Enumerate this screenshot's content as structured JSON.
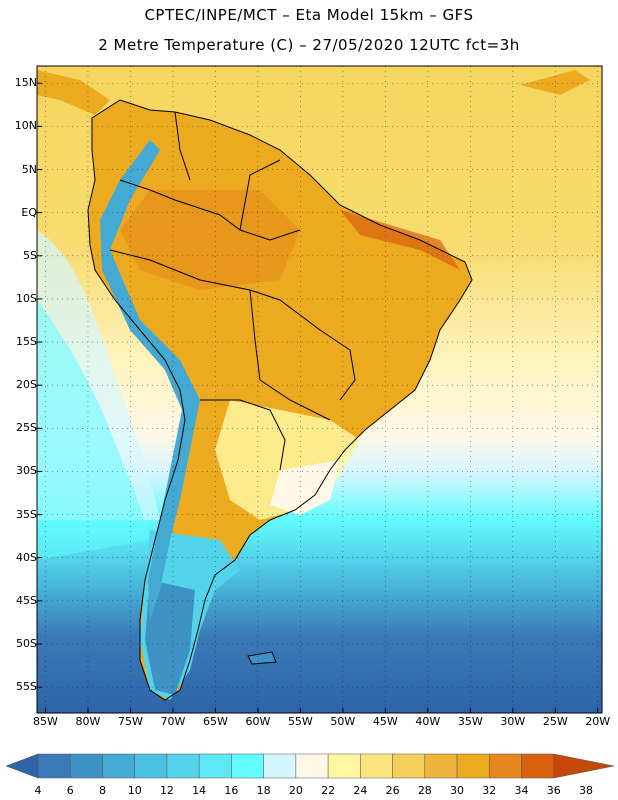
{
  "title": {
    "line1": "CPTEC/INPE/MCT –  Eta Model 15km – GFS",
    "line2": "2 Metre Temperature (C) – 27/05/2020 12UTC fct=3h"
  },
  "axes": {
    "lat_labels": [
      "15N",
      "10N",
      "5N",
      "EQ",
      "5S",
      "10S",
      "15S",
      "20S",
      "25S",
      "30S",
      "35S",
      "40S",
      "45S",
      "50S",
      "55S"
    ],
    "lat_values": [
      15,
      10,
      5,
      0,
      -5,
      -10,
      -15,
      -20,
      -25,
      -30,
      -35,
      -40,
      -45,
      -50,
      -55
    ],
    "lon_labels": [
      "85W",
      "80W",
      "75W",
      "70W",
      "65W",
      "60W",
      "55W",
      "50W",
      "45W",
      "40W",
      "35W",
      "30W",
      "25W",
      "20W"
    ],
    "lon_values": [
      -85,
      -80,
      -75,
      -70,
      -65,
      -60,
      -55,
      -50,
      -45,
      -40,
      -35,
      -30,
      -25,
      -20
    ],
    "lat_range": [
      -58,
      17
    ],
    "lon_range": [
      -86,
      -19.5
    ]
  },
  "colorbar": {
    "labels": [
      "4",
      "6",
      "8",
      "10",
      "12",
      "14",
      "16",
      "18",
      "20",
      "22",
      "24",
      "26",
      "28",
      "30",
      "32",
      "34",
      "36",
      "38"
    ],
    "colors": [
      "#2e64a8",
      "#3a7ab8",
      "#3f92c6",
      "#44aad4",
      "#4cc0e0",
      "#54d4ea",
      "#5ce8f4",
      "#62fbff",
      "#d4f6ff",
      "#fff8e6",
      "#fff7a0",
      "#fde47e",
      "#f5cf5c",
      "#eeb53c",
      "#ecaa20",
      "#e6861c",
      "#d8600e",
      "#c44808"
    ],
    "units": "C"
  },
  "regions": {
    "ocean_north": "#f5d55e",
    "ocean_mid": "#fff8e6",
    "ocean_cool": "#62fbff",
    "ocean_cold": "#3f92c6",
    "ocean_south": "#2e64a8",
    "land_hot": "#ecaa20",
    "land_warm": "#f5cf5c",
    "land_cool": "#d4f6ff",
    "andes": "#44aad4"
  }
}
